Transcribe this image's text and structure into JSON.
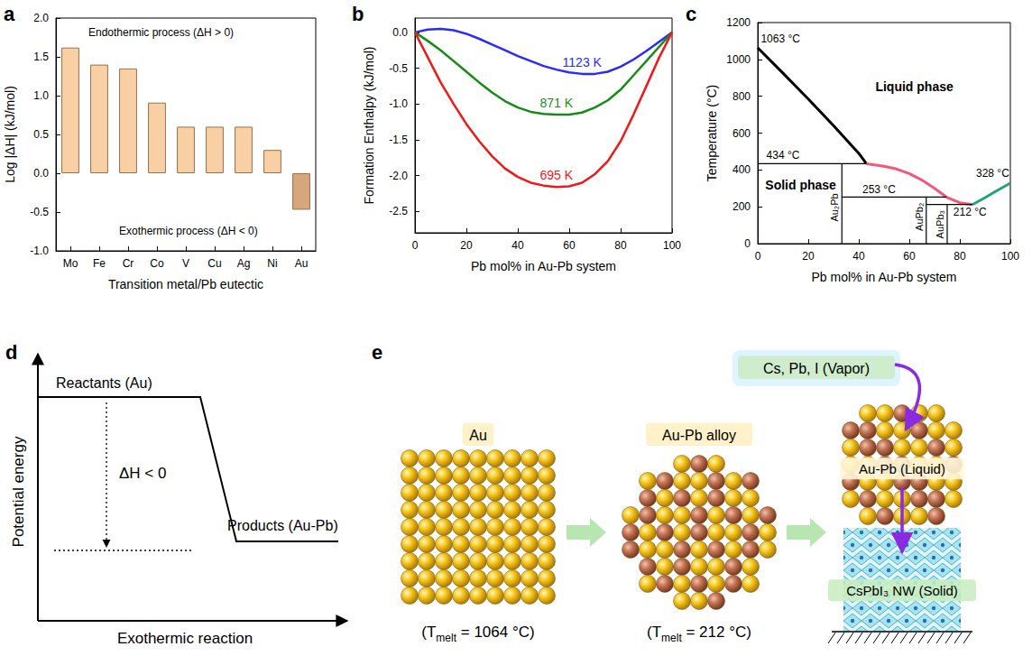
{
  "chart_data": [
    {
      "panel": "a",
      "type": "bar",
      "categories": [
        "Mo",
        "Fe",
        "Cr",
        "Co",
        "V",
        "Cu",
        "Ag",
        "Ni",
        "Au"
      ],
      "values": [
        1.62,
        1.4,
        1.35,
        0.91,
        0.6,
        0.6,
        0.6,
        0.3,
        -0.47
      ],
      "colors": [
        "#f9d0a4",
        "#f9d0a4",
        "#f9d0a4",
        "#f9d0a4",
        "#f9d0a4",
        "#f9d0a4",
        "#f9d0a4",
        "#f9d0a4",
        "#d6a77a"
      ],
      "x_label": "Transition metal/Pb eutectic",
      "y_label": "Log |ΔH| (kJ/mol)",
      "ylim": [
        -1,
        2
      ],
      "yticks": [
        {
          "value": -1,
          "label": "-1.0"
        },
        -0.5,
        {
          "value": 0,
          "label": "0.0"
        },
        0.5,
        {
          "value": 1,
          "label": "1.0"
        },
        1.5,
        {
          "value": 2,
          "label": "2.0"
        }
      ],
      "annotations": [
        "Endothermic process (ΔH > 0)",
        "Exothermic process (ΔH < 0)"
      ],
      "grid": false
    },
    {
      "panel": "b",
      "type": "line",
      "x": [
        0,
        5,
        10,
        15,
        20,
        25,
        30,
        35,
        40,
        45,
        50,
        55,
        60,
        65,
        70,
        75,
        80,
        85,
        90,
        95,
        100
      ],
      "series": [
        {
          "name": "1123 K",
          "color": "#2a2aff",
          "values": [
            0,
            0.04,
            0.05,
            0.03,
            -0.02,
            -0.09,
            -0.17,
            -0.25,
            -0.33,
            -0.4,
            -0.47,
            -0.52,
            -0.56,
            -0.58,
            -0.58,
            -0.55,
            -0.48,
            -0.38,
            -0.26,
            -0.13,
            0
          ]
        },
        {
          "name": "871 K",
          "color": "#168c16",
          "values": [
            0,
            -0.12,
            -0.25,
            -0.4,
            -0.55,
            -0.7,
            -0.84,
            -0.96,
            -1.05,
            -1.11,
            -1.14,
            -1.15,
            -1.15,
            -1.12,
            -1.05,
            -0.95,
            -0.8,
            -0.6,
            -0.4,
            -0.2,
            0
          ]
        },
        {
          "name": "695 K",
          "color": "#f01818",
          "values": [
            0,
            -0.35,
            -0.7,
            -1.0,
            -1.28,
            -1.52,
            -1.73,
            -1.9,
            -2.02,
            -2.1,
            -2.14,
            -2.16,
            -2.15,
            -2.1,
            -1.98,
            -1.8,
            -1.52,
            -1.15,
            -0.75,
            -0.35,
            0
          ]
        }
      ],
      "x_label": "Pb mol% in Au-Pb system",
      "y_label": "Formation Enthalpy (kJ/mol)",
      "xlim": [
        0,
        100
      ],
      "xticks": [
        0,
        20,
        40,
        60,
        80,
        100
      ],
      "ylim": [
        -2.8,
        0.2
      ],
      "yticks": [
        -2.5,
        {
          "value": -2,
          "label": "-2.0"
        },
        -1.5,
        {
          "value": -1,
          "label": "-1.0"
        },
        -0.5,
        {
          "value": 0,
          "label": "0.0"
        }
      ],
      "grid": false
    },
    {
      "panel": "c",
      "type": "line",
      "series": [
        {
          "color": "#000000",
          "line_style": "thick",
          "x": [
            0,
            10,
            20,
            30,
            40,
            43
          ],
          "values": [
            1063,
            925,
            785,
            640,
            490,
            434
          ]
        },
        {
          "color": "#f5577a",
          "line_style": "thick",
          "x": [
            43,
            50,
            55,
            60,
            65,
            70,
            75,
            80,
            85
          ],
          "values": [
            434,
            420,
            405,
            380,
            345,
            300,
            250,
            222,
            212
          ]
        },
        {
          "color": "#1fa37a",
          "line_style": "thick",
          "x": [
            85,
            90,
            95,
            100
          ],
          "values": [
            212,
            250,
            290,
            328
          ]
        },
        {
          "color": "#000000",
          "line_style": "thin",
          "x": [
            0,
            43
          ],
          "values": [
            434,
            434
          ]
        },
        {
          "color": "#000000",
          "line_style": "thin",
          "x": [
            33.3,
            74.7
          ],
          "values": [
            253,
            253
          ]
        },
        {
          "color": "#000000",
          "line_style": "thin",
          "x": [
            66.7,
            85
          ],
          "values": [
            212,
            212
          ]
        },
        {
          "name": "Au₂Pb",
          "color": "#000000",
          "line_style": "thin",
          "x": [
            33.3,
            33.3
          ],
          "values": [
            0,
            434
          ]
        },
        {
          "name": "AuPb₂",
          "color": "#000000",
          "line_style": "thin",
          "x": [
            66.7,
            66.7
          ],
          "values": [
            0,
            253
          ]
        },
        {
          "name": "AuPb₃",
          "color": "#000000",
          "line_style": "thin",
          "x": [
            75,
            75
          ],
          "values": [
            0,
            212
          ]
        }
      ],
      "annotations": [
        {
          "text": "1063 °C",
          "x": 9,
          "y": 1110
        },
        {
          "text": "434 °C",
          "x": 10,
          "y": 480
        },
        {
          "text": "253 °C",
          "x": 48,
          "y": 295
        },
        {
          "text": "212 °C",
          "x": 84,
          "y": 170
        },
        {
          "text": "328 °C",
          "x": 93,
          "y": 380
        },
        {
          "text": "Liquid phase",
          "x": 62,
          "y": 850
        },
        {
          "text": "Solid phase",
          "x": 17,
          "y": 320
        }
      ],
      "x_label": "Pb mol% in Au-Pb system",
      "y_label": "Temperature (°C)",
      "xlim": [
        0,
        100
      ],
      "xticks": [
        0,
        20,
        40,
        60,
        80,
        100
      ],
      "ylim": [
        0,
        1200
      ],
      "yticks": [
        0,
        200,
        400,
        600,
        800,
        1000,
        1200
      ],
      "grid": false
    }
  ],
  "diagrams": {
    "d": {
      "panel": "d",
      "y_label": "Potential energy",
      "x_label": "Exothermic reaction",
      "reactants": "Reactants (Au)",
      "products": "Products (Au-Pb)",
      "delta": "ΔH < 0"
    },
    "e": {
      "panel": "e",
      "stages": [
        {
          "label": "Au",
          "tmelt": {
            "prefix": "(T",
            "sub": "melt",
            "suffix": " = 1064 °C)"
          }
        },
        {
          "label": "Au-Pb alloy",
          "tmelt": {
            "prefix": "(T",
            "sub": "melt",
            "suffix": " = 212 °C)"
          }
        }
      ],
      "vapor": "Cs, Pb, I (Vapor)",
      "droplet": "Au-Pb (Liquid)",
      "nanowire": "CsPbI₃ NW (Solid)"
    }
  }
}
